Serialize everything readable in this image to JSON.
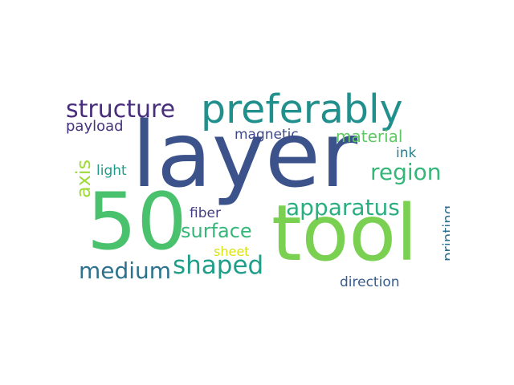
{
  "words": [
    {
      "text": "layer",
      "color": "#3b528b"
    },
    {
      "text": "tool",
      "color": "#7ad151"
    },
    {
      "text": "50",
      "color": "#4ac16d"
    },
    {
      "text": "preferably",
      "color": "#21908d"
    },
    {
      "text": "structure",
      "color": "#472d7b"
    },
    {
      "text": "region",
      "color": "#35b779"
    },
    {
      "text": "apparatus",
      "color": "#29af7f"
    },
    {
      "text": "shaped",
      "color": "#1f9e89"
    },
    {
      "text": "medium",
      "color": "#2c728e"
    },
    {
      "text": "surface",
      "color": "#35b779"
    },
    {
      "text": "axis",
      "color": "#a0da39"
    },
    {
      "text": "payload",
      "color": "#46337f"
    },
    {
      "text": "magnetic",
      "color": "#3e4989"
    },
    {
      "text": "material",
      "color": "#5ec962"
    },
    {
      "text": "ink",
      "color": "#277f8e"
    },
    {
      "text": "light",
      "color": "#1f9a8a"
    },
    {
      "text": "fiber",
      "color": "#433e85"
    },
    {
      "text": "sheet",
      "color": "#d8e219"
    },
    {
      "text": "printing",
      "color": "#2e6e8e"
    },
    {
      "text": "direction",
      "color": "#365d8d"
    }
  ]
}
